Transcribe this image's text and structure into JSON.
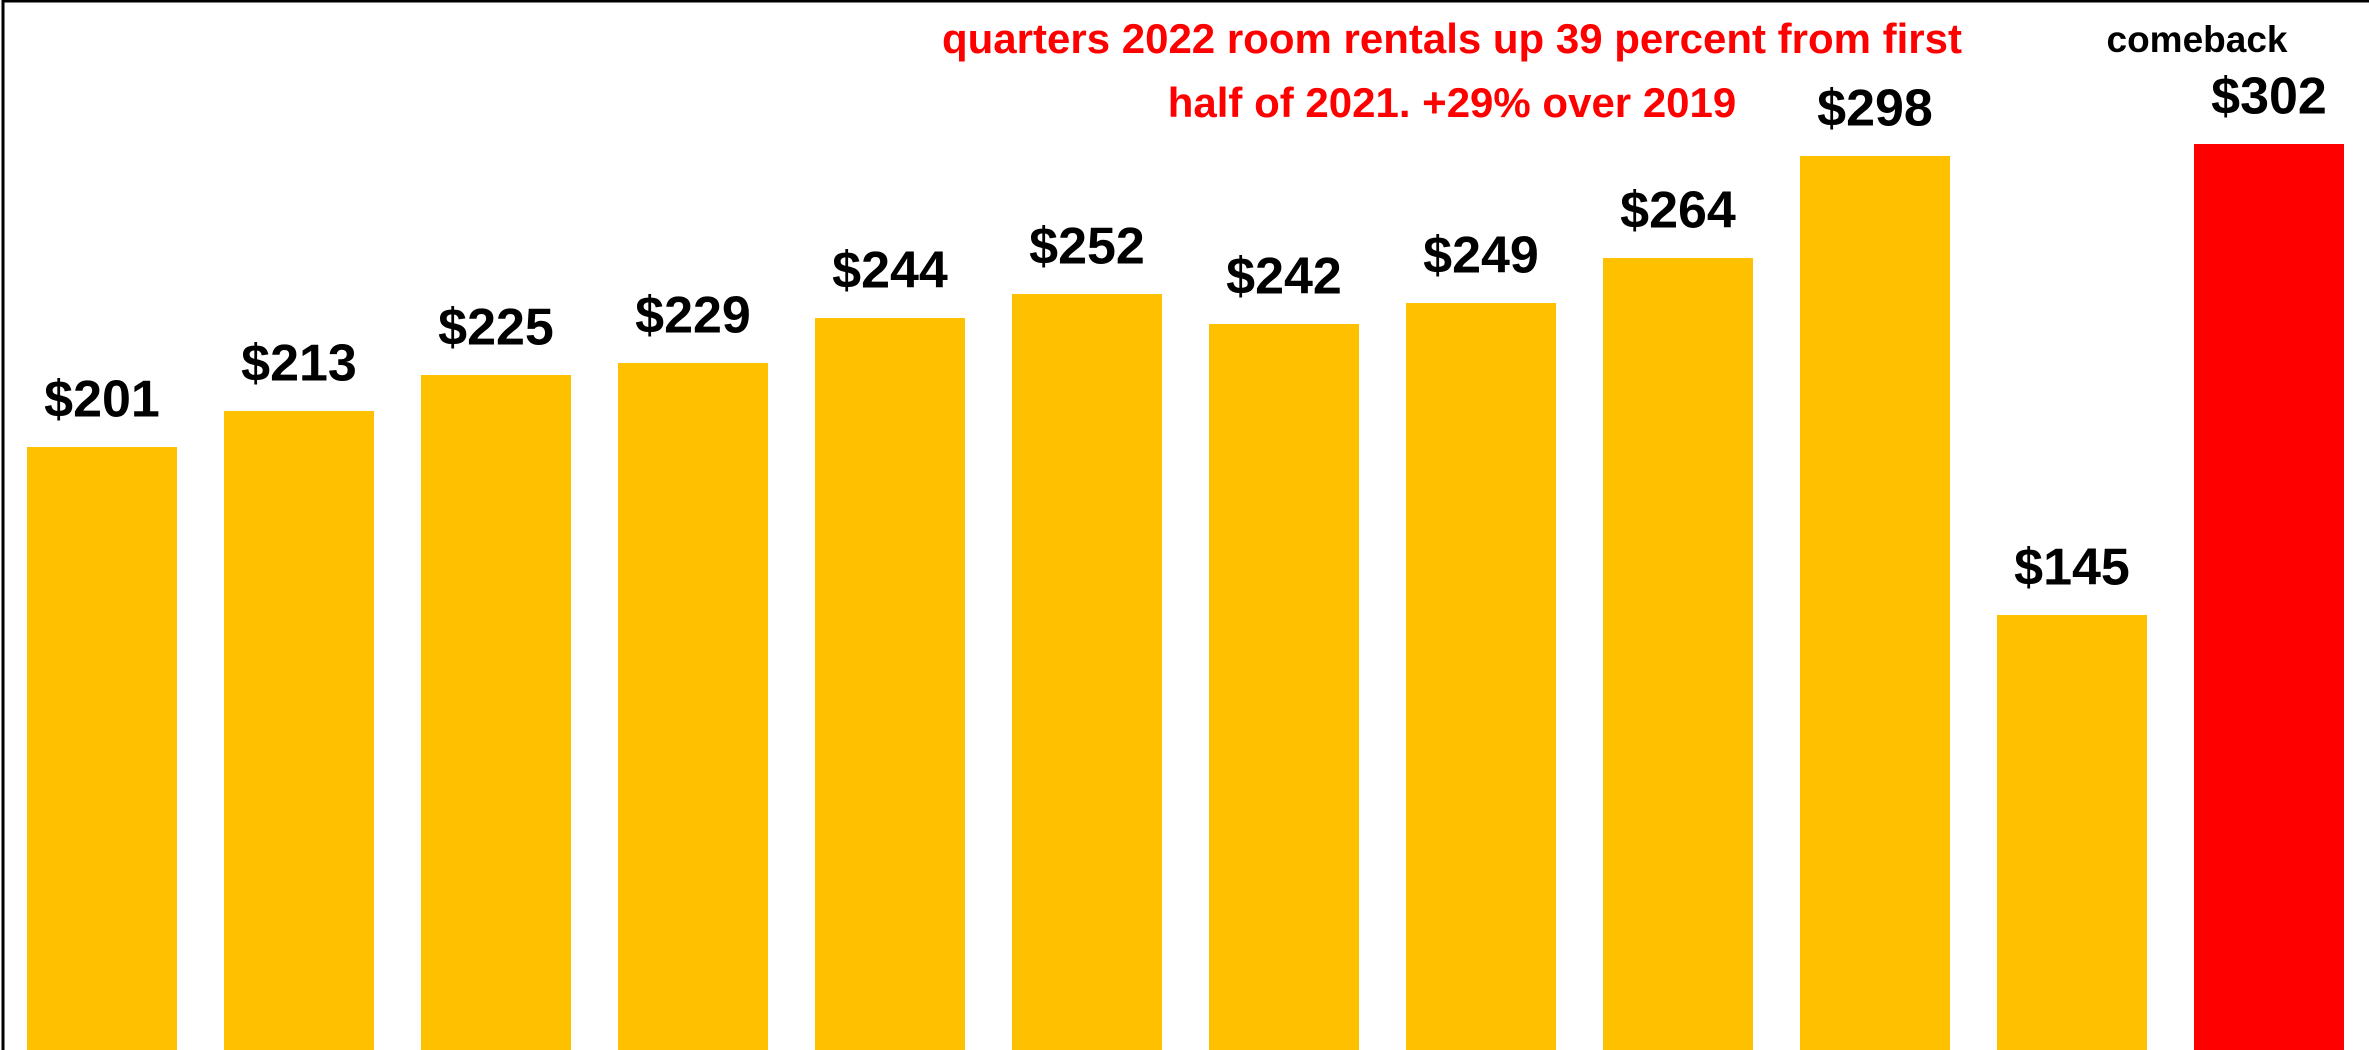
{
  "chart_data": {
    "type": "bar",
    "annotations": [
      "quarters 2022 room rentals up 39 percent from first",
      "half of 2021. +29% over 2019",
      "comeback"
    ],
    "categories": [
      null,
      null,
      null,
      null,
      null,
      null,
      null,
      null,
      null,
      null,
      null,
      null
    ],
    "values": [
      201,
      213,
      225,
      229,
      244,
      252,
      242,
      249,
      264,
      298,
      145,
      302
    ],
    "value_labels": [
      "$201",
      "$213",
      "$225",
      "$229",
      "$244",
      "$252",
      "$242",
      "$249",
      "$264",
      "$298",
      "$145",
      "$302"
    ],
    "colors": [
      "#ffc000",
      "#ffc000",
      "#ffc000",
      "#ffc000",
      "#ffc000",
      "#ffc000",
      "#ffc000",
      "#ffc000",
      "#ffc000",
      "#ffc000",
      "#ffc000",
      "#ff0000"
    ],
    "annotation_color": "#ff0000",
    "ylim": [
      0,
      350
    ]
  }
}
